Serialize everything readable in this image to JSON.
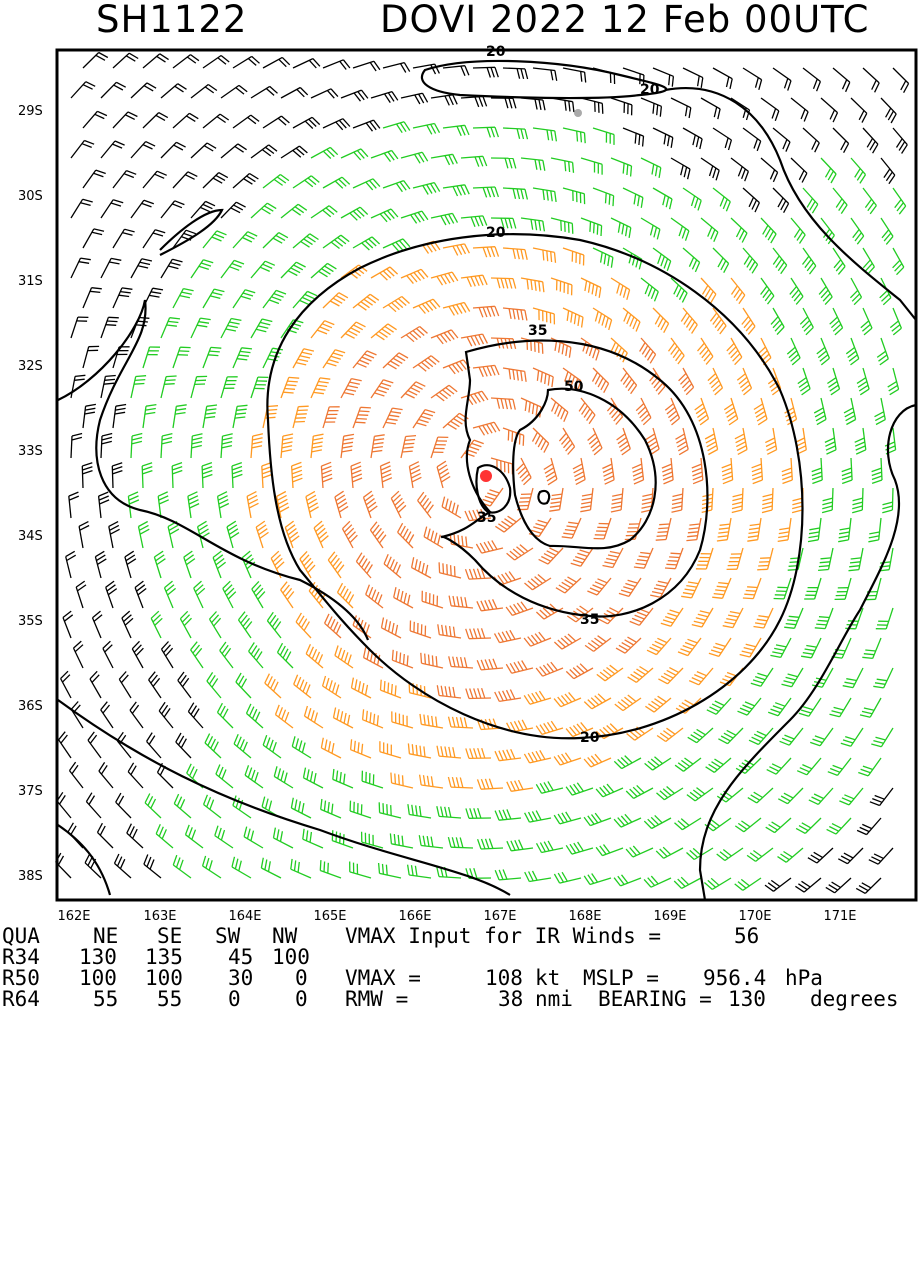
{
  "title": {
    "storm_id": "SH1122",
    "storm_time": "DOVI 2022 12 Feb 00UTC"
  },
  "map": {
    "lat_labels": [
      "29S",
      "30S",
      "31S",
      "32S",
      "33S",
      "34S",
      "35S",
      "36S",
      "37S",
      "38S"
    ],
    "lon_labels": [
      "162E",
      "163E",
      "164E",
      "165E",
      "166E",
      "167E",
      "168E",
      "169E",
      "170E",
      "171E"
    ],
    "contour_labels": [
      "20",
      "20",
      "20",
      "35",
      "50",
      "35",
      "35",
      "20"
    ],
    "center_marker_color": "#ff3333",
    "barb_colors": {
      "below_34kt": "#000000",
      "34_to_50kt": "#22cc22",
      "50_to_64kt": "#ff9922",
      "above_64kt": "#ee7733"
    }
  },
  "radii_table": {
    "headers": [
      "QUA",
      "NE",
      "SE",
      "SW",
      "NW"
    ],
    "rows": [
      [
        "R34",
        "130",
        "135",
        "45",
        "100"
      ],
      [
        "R50",
        "100",
        "100",
        "30",
        "0"
      ],
      [
        "R64",
        "55",
        "55",
        "0",
        "0"
      ]
    ]
  },
  "info": {
    "vmax_input_label": "VMAX Input for IR Winds =",
    "vmax_input_value": "56",
    "vmax_label": "VMAX =",
    "vmax_value": "108",
    "vmax_unit": "kt",
    "mslp_label": "MSLP =",
    "mslp_value": "956.4",
    "mslp_unit": "hPa",
    "rmw_label": "RMW =",
    "rmw_value": "38",
    "rmw_unit": "nmi",
    "bearing_label": "BEARING =",
    "bearing_value": "130",
    "bearing_unit": "degrees"
  }
}
